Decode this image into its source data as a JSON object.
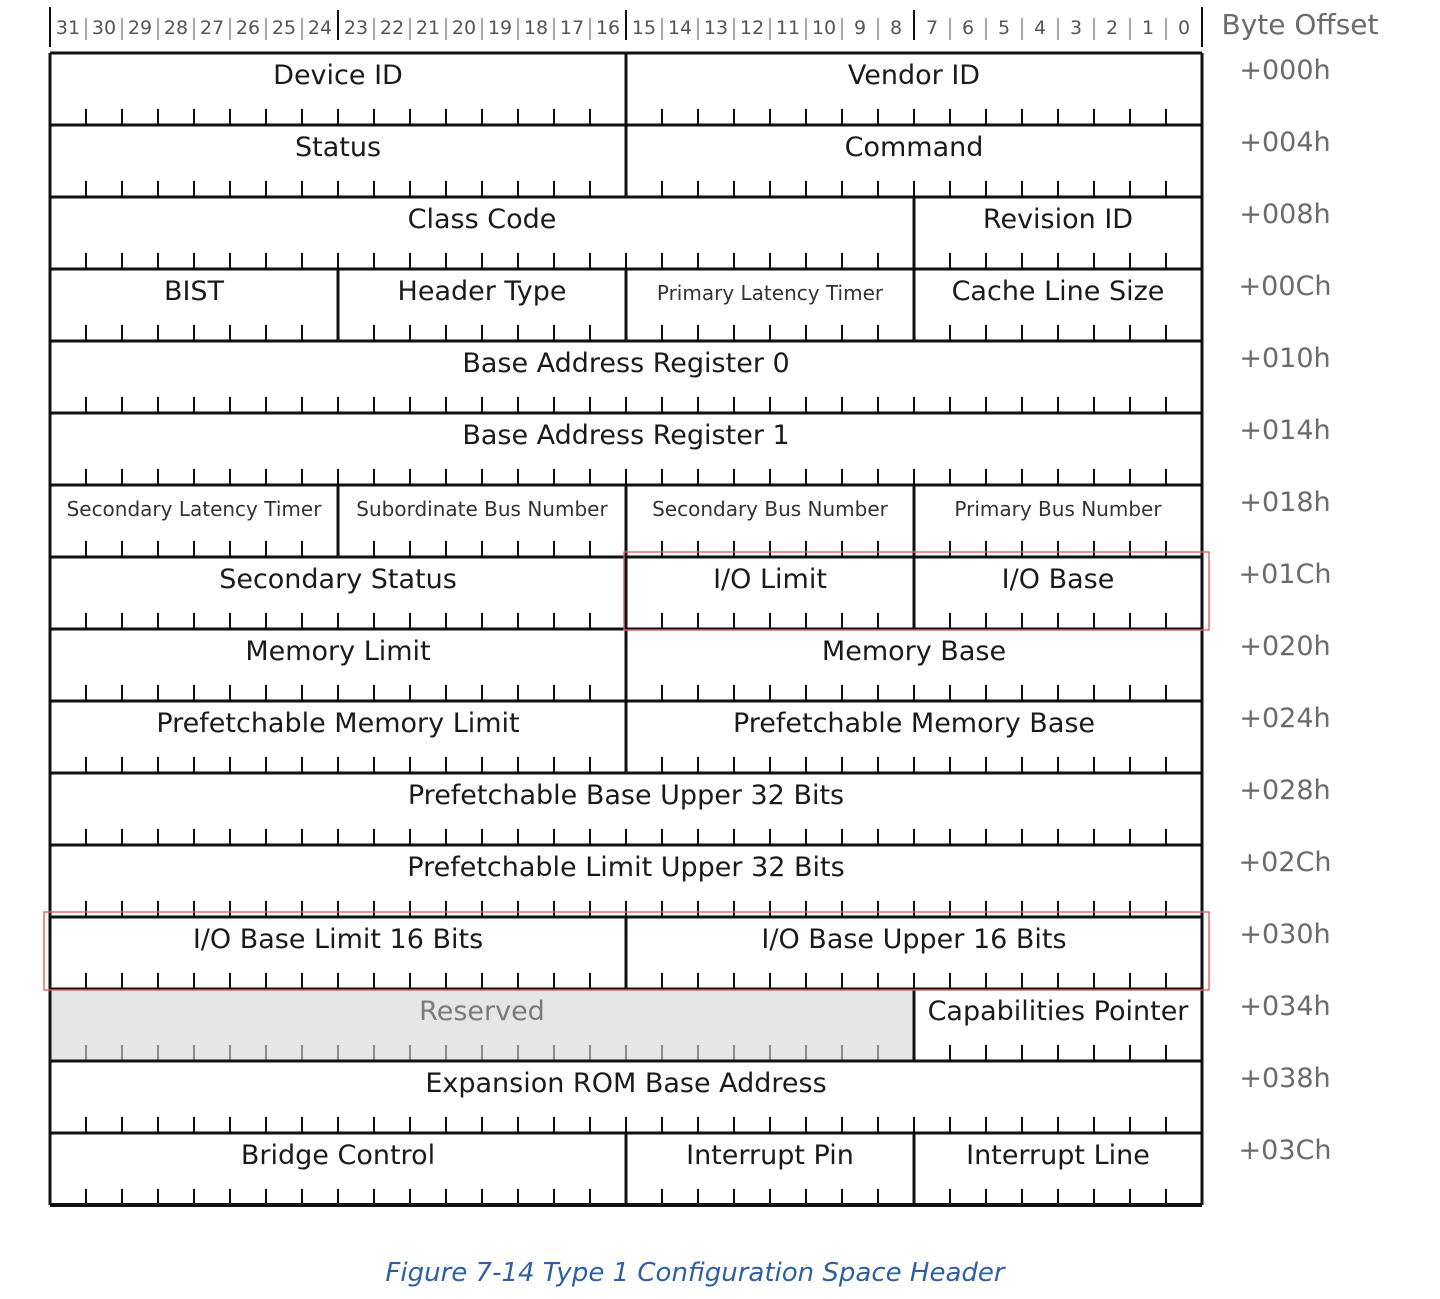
{
  "header": {
    "byte_offset_label": "Byte Offset",
    "bit_numbers": [
      "31",
      "30",
      "29",
      "28",
      "27",
      "26",
      "25",
      "24",
      "23",
      "22",
      "21",
      "20",
      "19",
      "18",
      "17",
      "16",
      "15",
      "14",
      "13",
      "12",
      "11",
      "10",
      "9",
      "8",
      "7",
      "6",
      "5",
      "4",
      "3",
      "2",
      "1",
      "0"
    ]
  },
  "colors": {
    "line": "#111111",
    "bit_text": "#555555",
    "offset_text": "#6b6b6b",
    "reserved_fill": "#e6e6e6",
    "reserved_text": "#7a7a7a",
    "highlight": "#e06060",
    "caption": "#2e5fa3"
  },
  "rows": [
    {
      "offset": "+000h",
      "fields": [
        {
          "label": "Device ID",
          "hi": 31,
          "lo": 16
        },
        {
          "label": "Vendor ID",
          "hi": 15,
          "lo": 0
        }
      ]
    },
    {
      "offset": "+004h",
      "fields": [
        {
          "label": "Status",
          "hi": 31,
          "lo": 16
        },
        {
          "label": "Command",
          "hi": 15,
          "lo": 0
        }
      ]
    },
    {
      "offset": "+008h",
      "fields": [
        {
          "label": "Class Code",
          "hi": 31,
          "lo": 8
        },
        {
          "label": "Revision ID",
          "hi": 7,
          "lo": 0
        }
      ]
    },
    {
      "offset": "+00Ch",
      "fields": [
        {
          "label": "BIST",
          "hi": 31,
          "lo": 24
        },
        {
          "label": "Header Type",
          "hi": 23,
          "lo": 16
        },
        {
          "label": "Primary Latency Timer",
          "hi": 15,
          "lo": 8,
          "small": true
        },
        {
          "label": "Cache Line Size",
          "hi": 7,
          "lo": 0
        }
      ]
    },
    {
      "offset": "+010h",
      "fields": [
        {
          "label": "Base Address Register 0",
          "hi": 31,
          "lo": 0
        }
      ]
    },
    {
      "offset": "+014h",
      "fields": [
        {
          "label": "Base Address Register 1",
          "hi": 31,
          "lo": 0
        }
      ]
    },
    {
      "offset": "+018h",
      "fields": [
        {
          "label": "Secondary Latency Timer",
          "hi": 31,
          "lo": 24,
          "small": true
        },
        {
          "label": "Subordinate Bus Number",
          "hi": 23,
          "lo": 16,
          "small": true
        },
        {
          "label": "Secondary Bus Number",
          "hi": 15,
          "lo": 8,
          "small": true
        },
        {
          "label": "Primary Bus Number",
          "hi": 7,
          "lo": 0,
          "small": true
        }
      ]
    },
    {
      "offset": "+01Ch",
      "fields": [
        {
          "label": "Secondary Status",
          "hi": 31,
          "lo": 16
        },
        {
          "label": "I/O Limit",
          "hi": 15,
          "lo": 8
        },
        {
          "label": "I/O Base",
          "hi": 7,
          "lo": 0
        }
      ]
    },
    {
      "offset": "+020h",
      "fields": [
        {
          "label": "Memory Limit",
          "hi": 31,
          "lo": 16
        },
        {
          "label": "Memory Base",
          "hi": 15,
          "lo": 0
        }
      ]
    },
    {
      "offset": "+024h",
      "fields": [
        {
          "label": "Prefetchable Memory Limit",
          "hi": 31,
          "lo": 16
        },
        {
          "label": "Prefetchable Memory Base",
          "hi": 15,
          "lo": 0
        }
      ]
    },
    {
      "offset": "+028h",
      "fields": [
        {
          "label": "Prefetchable Base Upper 32 Bits",
          "hi": 31,
          "lo": 0
        }
      ]
    },
    {
      "offset": "+02Ch",
      "fields": [
        {
          "label": "Prefetchable Limit Upper 32 Bits",
          "hi": 31,
          "lo": 0
        }
      ]
    },
    {
      "offset": "+030h",
      "fields": [
        {
          "label": "I/O Base Limit 16 Bits",
          "hi": 31,
          "lo": 16
        },
        {
          "label": "I/O Base Upper 16 Bits",
          "hi": 15,
          "lo": 0
        }
      ]
    },
    {
      "offset": "+034h",
      "fields": [
        {
          "label": "Reserved",
          "hi": 31,
          "lo": 8,
          "reserved": true
        },
        {
          "label": "Capabilities Pointer",
          "hi": 7,
          "lo": 0
        }
      ]
    },
    {
      "offset": "+038h",
      "fields": [
        {
          "label": "Expansion ROM Base Address",
          "hi": 31,
          "lo": 0
        }
      ]
    },
    {
      "offset": "+03Ch",
      "fields": [
        {
          "label": "Bridge Control",
          "hi": 31,
          "lo": 16
        },
        {
          "label": "Interrupt Pin",
          "hi": 15,
          "lo": 8
        },
        {
          "label": "Interrupt Line",
          "hi": 7,
          "lo": 0
        }
      ]
    }
  ],
  "highlights": [
    {
      "name": "highlight-io-limit-base",
      "row": 7,
      "hi": 15,
      "lo": 0
    },
    {
      "name": "highlight-io-upper-16",
      "row": 12,
      "hi": 31,
      "lo": 0
    }
  ],
  "caption": "Figure 7-14 Type 1 Configuration Space Header"
}
